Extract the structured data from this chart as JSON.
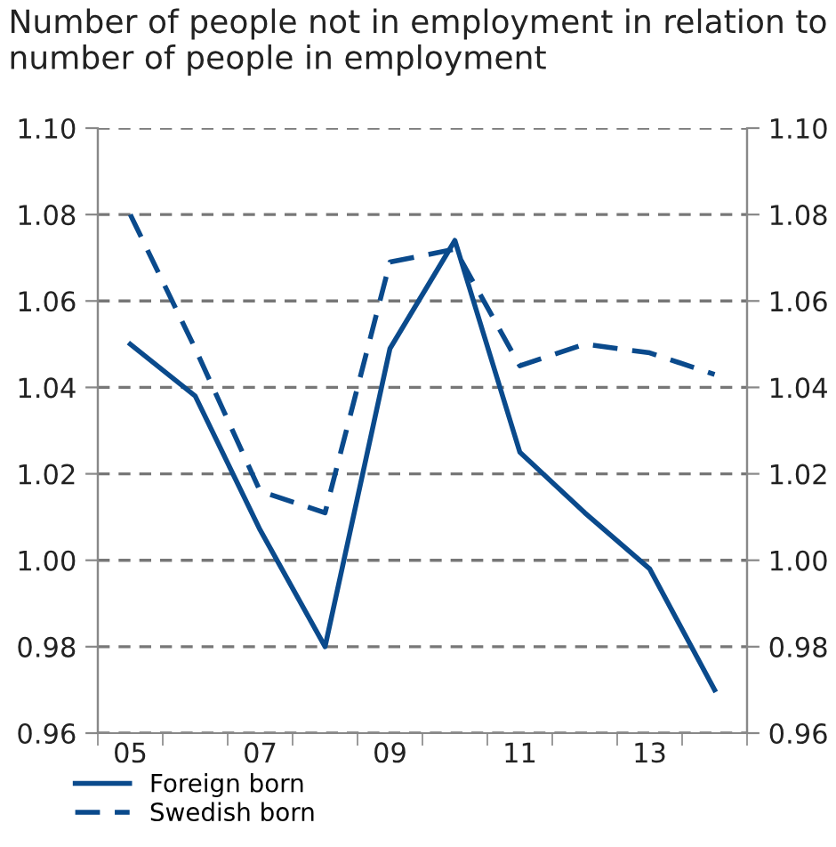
{
  "chart_data": {
    "type": "line",
    "title": "Number of people not in employment in relation to number of people in employment",
    "categories": [
      "05",
      null,
      "07",
      null,
      "09",
      null,
      "11",
      null,
      "13",
      null
    ],
    "series": [
      {
        "name": "Foreign born",
        "color": "#0a4a8c",
        "line_style": "solid",
        "values": [
          1.05,
          1.038,
          1.007,
          0.98,
          1.049,
          1.074,
          1.025,
          1.011,
          0.998,
          0.97
        ]
      },
      {
        "name": "Swedish born",
        "color": "#0a4a8c",
        "line_style": "dashed",
        "values": [
          1.08,
          1.049,
          1.016,
          1.011,
          1.069,
          1.072,
          1.045,
          1.05,
          1.048,
          1.043
        ]
      }
    ],
    "ylim": [
      0.96,
      1.1
    ],
    "yticks": [
      0.96,
      0.98,
      {
        "value": 1.0,
        "label": "1.00"
      },
      1.02,
      1.04,
      1.06,
      1.08,
      {
        "value": 1.1,
        "label": "1.10"
      }
    ],
    "y2lim": [
      0.96,
      1.1
    ],
    "y2ticks": [
      0.96,
      0.98,
      {
        "value": 1.0,
        "label": "1.00"
      },
      1.02,
      1.04,
      1.06,
      1.08,
      {
        "value": 1.1,
        "label": "1.10"
      }
    ],
    "grid": "y",
    "legend": "bottom left"
  }
}
